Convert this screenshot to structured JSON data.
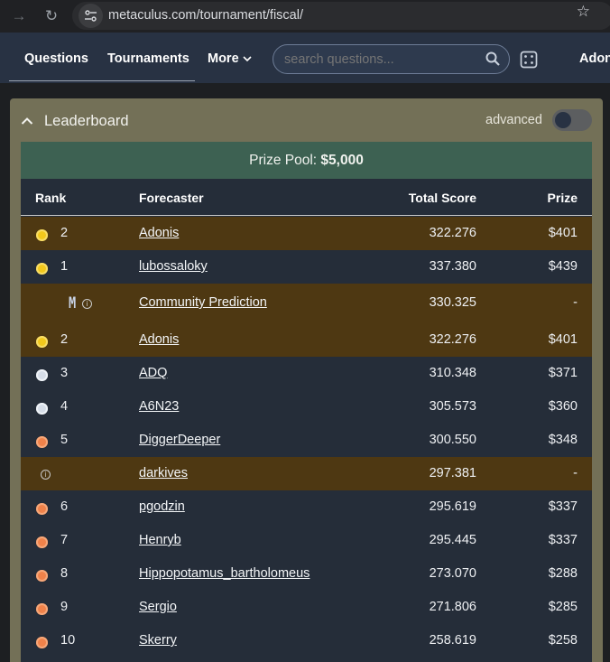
{
  "browser": {
    "url": "metaculus.com/tournament/fiscal/"
  },
  "nav": {
    "questions": "Questions",
    "tournaments": "Tournaments",
    "more": "More",
    "search_placeholder": "search questions...",
    "user": "Adonis"
  },
  "leaderboard": {
    "title": "Leaderboard",
    "advanced_label": "advanced",
    "advanced_on": false,
    "prize_label": "Prize Pool:",
    "prize_amount": "$5,000",
    "columns": {
      "rank": "Rank",
      "forecaster": "Forecaster",
      "score": "Total Score",
      "prize": "Prize"
    },
    "rows": [
      {
        "rank": "2",
        "name": "Adonis",
        "score": "322.276",
        "prize": "$401",
        "medal": "gold",
        "highlight": true
      },
      {
        "rank": "1",
        "name": "lubossaloky",
        "score": "337.380",
        "prize": "$439",
        "medal": "gold",
        "highlight": false
      },
      {
        "rank": "",
        "name": "Community Prediction",
        "score": "330.325",
        "prize": "-",
        "medal": "community",
        "highlight": true
      },
      {
        "rank": "2",
        "name": "Adonis",
        "score": "322.276",
        "prize": "$401",
        "medal": "gold",
        "highlight": true
      },
      {
        "rank": "3",
        "name": "ADQ",
        "score": "310.348",
        "prize": "$371",
        "medal": "silver",
        "highlight": false
      },
      {
        "rank": "4",
        "name": "A6N23",
        "score": "305.573",
        "prize": "$360",
        "medal": "silver",
        "highlight": false
      },
      {
        "rank": "5",
        "name": "DiggerDeeper",
        "score": "300.550",
        "prize": "$348",
        "medal": "bronze",
        "highlight": false
      },
      {
        "rank": "",
        "name": "darkives",
        "score": "297.381",
        "prize": "-",
        "medal": "info",
        "highlight": true
      },
      {
        "rank": "6",
        "name": "pgodzin",
        "score": "295.619",
        "prize": "$337",
        "medal": "bronze",
        "highlight": false
      },
      {
        "rank": "7",
        "name": "Henryb",
        "score": "295.445",
        "prize": "$337",
        "medal": "bronze",
        "highlight": false
      },
      {
        "rank": "8",
        "name": "Hippopotamus_bartholomeus",
        "score": "273.070",
        "prize": "$288",
        "medal": "bronze",
        "highlight": false
      },
      {
        "rank": "9",
        "name": "Sergio",
        "score": "271.806",
        "prize": "$285",
        "medal": "bronze",
        "highlight": false
      },
      {
        "rank": "10",
        "name": "Skerry",
        "score": "258.619",
        "prize": "$258",
        "medal": "bronze",
        "highlight": false
      }
    ]
  }
}
